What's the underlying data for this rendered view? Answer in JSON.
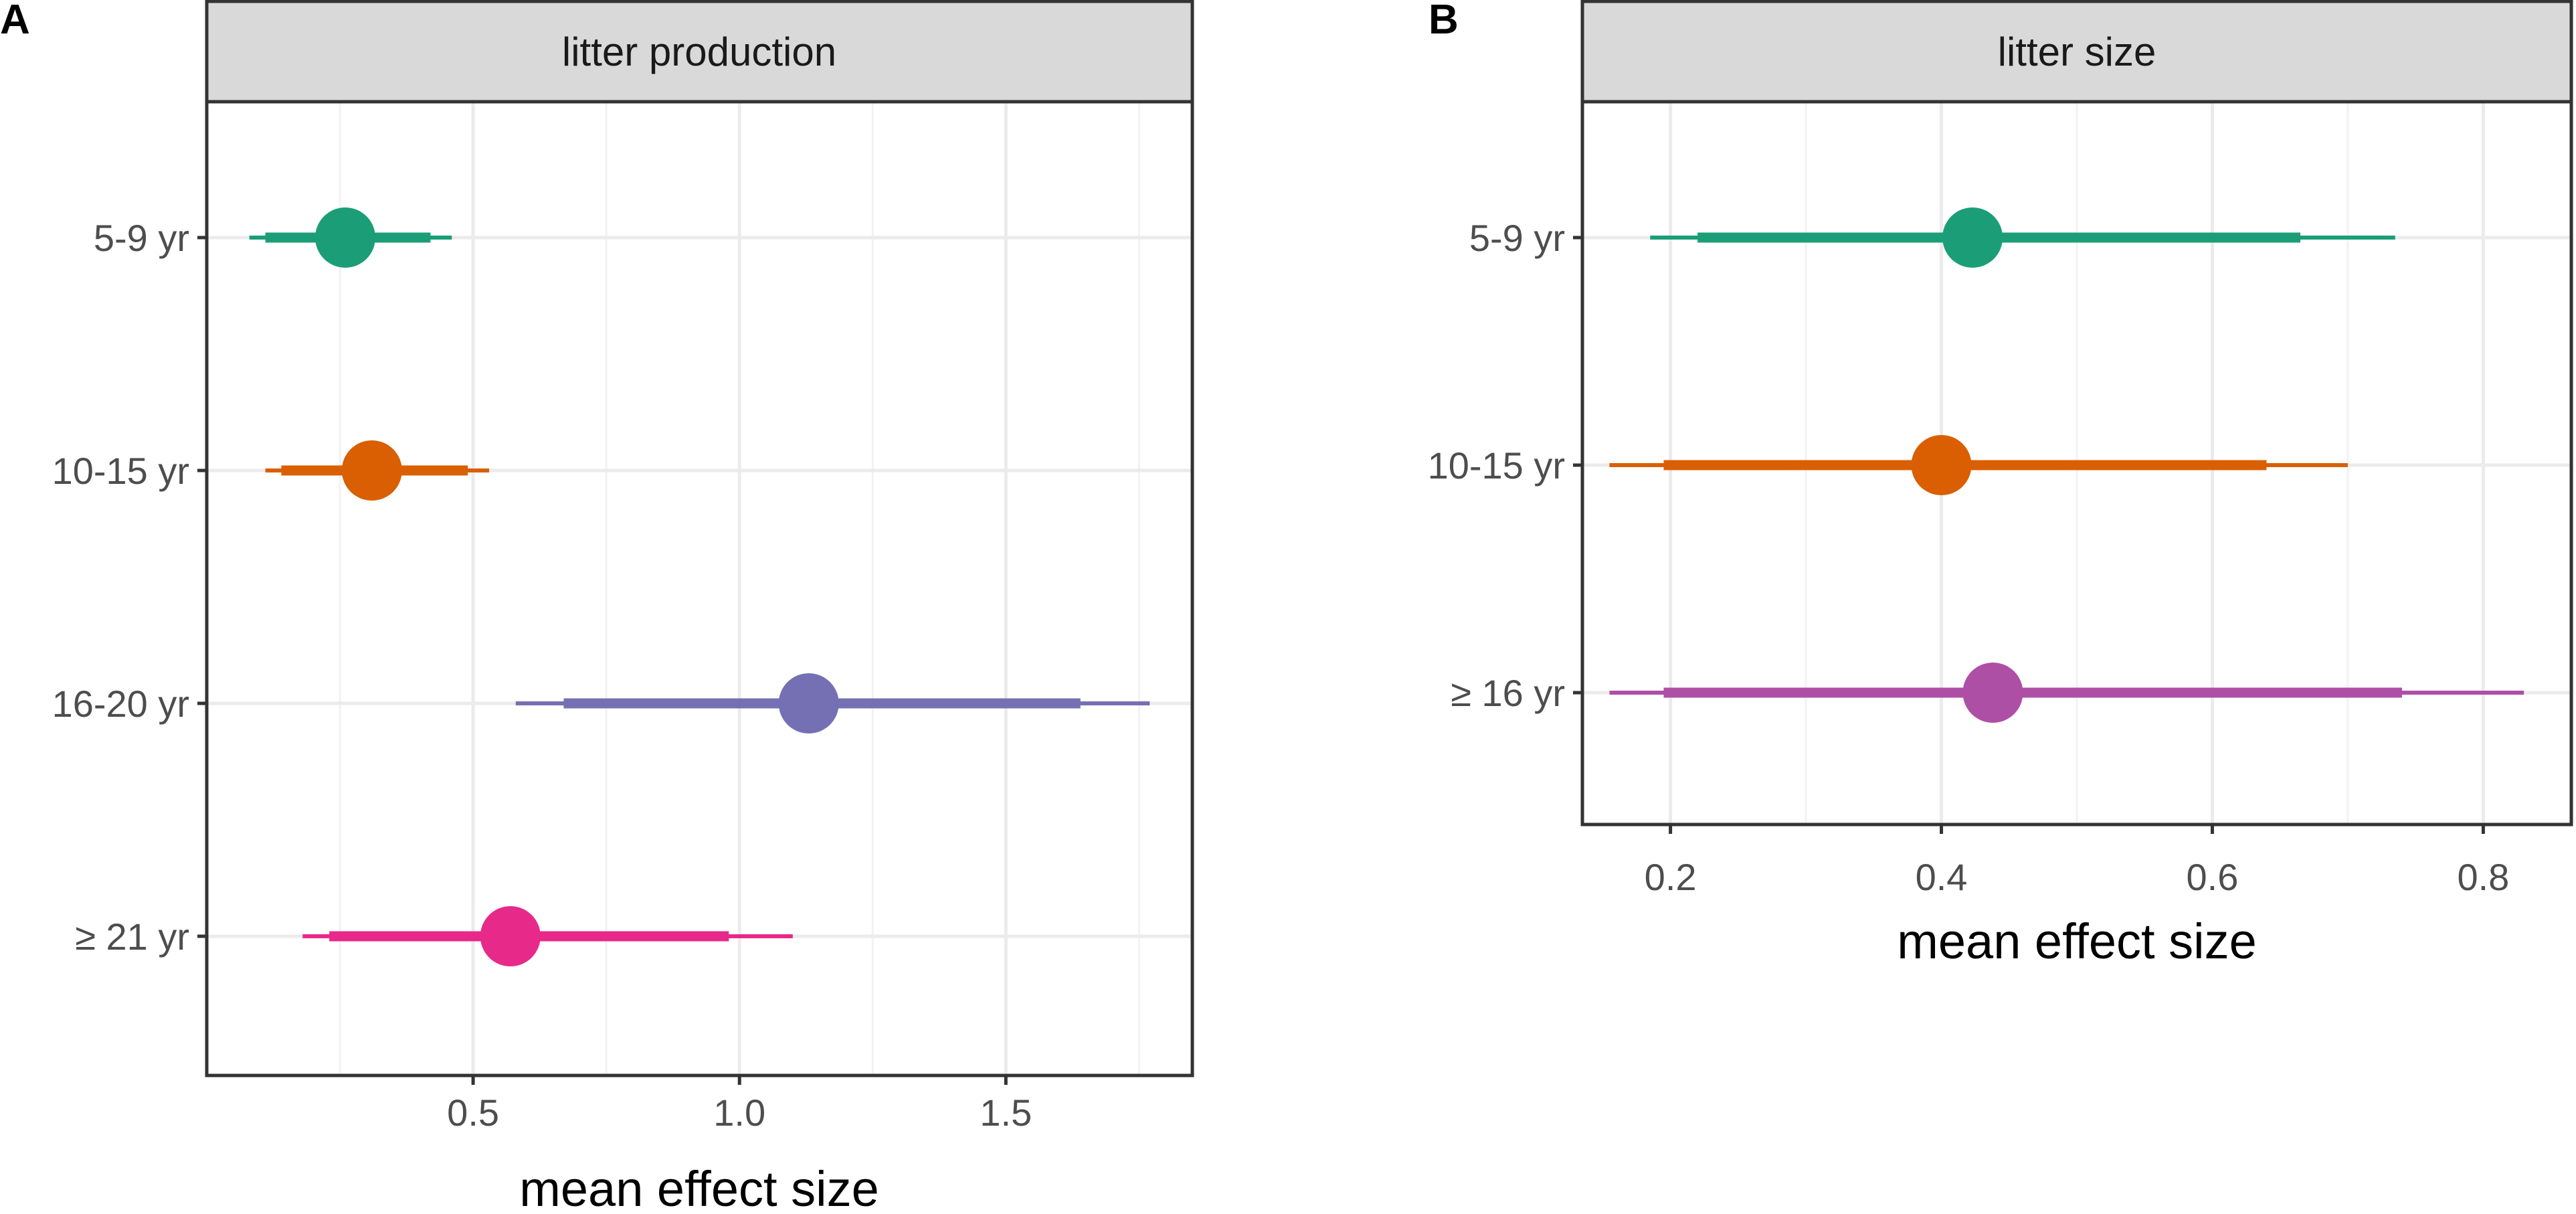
{
  "figure": {
    "x_axis_title": "mean effect size"
  },
  "chart_data": [
    {
      "type": "pointrange",
      "panel_label": "A",
      "title": "litter production",
      "xlabel": "mean effect size",
      "xlim": [
        0.0,
        1.85
      ],
      "xticks": [
        0.5,
        1.0,
        1.5
      ],
      "xtick_labels": [
        "0.5",
        "1.0",
        "1.5"
      ],
      "categories": [
        "5-9 yr",
        "10-15 yr",
        "16-20 yr",
        "≥ 21 yr"
      ],
      "series": [
        {
          "category": "5-9 yr",
          "mean": 0.26,
          "inner": [
            0.11,
            0.42
          ],
          "outer": [
            0.08,
            0.46
          ],
          "color": "#1b9e77"
        },
        {
          "category": "10-15 yr",
          "mean": 0.31,
          "inner": [
            0.14,
            0.49
          ],
          "outer": [
            0.11,
            0.53
          ],
          "color": "#d95f02"
        },
        {
          "category": "16-20 yr",
          "mean": 1.13,
          "inner": [
            0.67,
            1.64
          ],
          "outer": [
            0.58,
            1.77
          ],
          "color": "#7570b3"
        },
        {
          "category": "≥ 21 yr",
          "mean": 0.57,
          "inner": [
            0.23,
            0.98
          ],
          "outer": [
            0.18,
            1.1
          ],
          "color": "#e7298a"
        }
      ]
    },
    {
      "type": "pointrange",
      "panel_label": "B",
      "title": "litter size",
      "xlabel": "mean effect size",
      "xlim": [
        0.135,
        0.865
      ],
      "xticks": [
        0.2,
        0.4,
        0.6,
        0.8
      ],
      "xtick_labels": [
        "0.2",
        "0.4",
        "0.6",
        "0.8"
      ],
      "categories": [
        "5-9 yr",
        "10-15 yr",
        "≥ 16 yr"
      ],
      "series": [
        {
          "category": "5-9 yr",
          "mean": 0.423,
          "inner": [
            0.22,
            0.665
          ],
          "outer": [
            0.185,
            0.735
          ],
          "color": "#1b9e77"
        },
        {
          "category": "10-15 yr",
          "mean": 0.4,
          "inner": [
            0.195,
            0.64
          ],
          "outer": [
            0.155,
            0.7
          ],
          "color": "#d95f02"
        },
        {
          "category": "≥ 16 yr",
          "mean": 0.438,
          "inner": [
            0.195,
            0.74
          ],
          "outer": [
            0.155,
            0.83
          ],
          "color": "#ae4fa6"
        }
      ]
    }
  ]
}
